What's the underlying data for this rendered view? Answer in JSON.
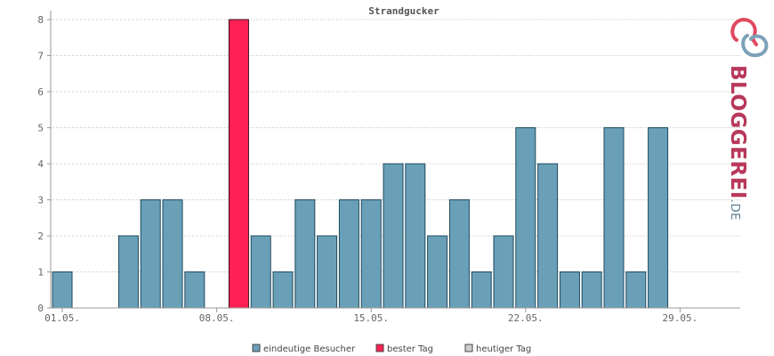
{
  "chart_data": {
    "type": "bar",
    "title": "Strandgucker",
    "categories": [
      "01.05.",
      "02.05.",
      "03.05.",
      "04.05.",
      "05.05.",
      "06.05.",
      "07.05.",
      "08.05.",
      "09.05.",
      "10.05.",
      "11.05.",
      "12.05.",
      "13.05.",
      "14.05.",
      "15.05.",
      "16.05.",
      "17.05.",
      "18.05.",
      "19.05.",
      "20.05.",
      "21.05.",
      "22.05.",
      "23.05.",
      "24.05.",
      "25.05.",
      "26.05.",
      "27.05.",
      "28.05.",
      "29.05.",
      "30.05.",
      "31.05."
    ],
    "x_tick_labels": [
      "01.05.",
      "08.05.",
      "15.05.",
      "22.05.",
      "29.05."
    ],
    "series": [
      {
        "name": "eindeutige Besucher",
        "values": [
          1,
          0,
          0,
          2,
          3,
          3,
          1,
          0,
          8,
          2,
          1,
          3,
          2,
          3,
          3,
          4,
          4,
          2,
          3,
          1,
          2,
          5,
          4,
          1,
          1,
          5,
          1,
          5,
          0,
          0,
          0
        ]
      }
    ],
    "best_day_index": 8,
    "ylim": [
      0,
      8
    ],
    "y_ticks": [
      0,
      1,
      2,
      3,
      4,
      5,
      6,
      7,
      8
    ],
    "grid": true,
    "colors": {
      "visitors": "#6a9fb8",
      "best": "#ff2156",
      "today": "#cccccc",
      "bar_border": "#1e4a5c"
    },
    "legend": [
      {
        "label": "eindeutige Besucher",
        "color": "#6a9fb8"
      },
      {
        "label": "bester Tag",
        "color": "#ff2156"
      },
      {
        "label": "heutiger Tag",
        "color": "#cccccc"
      }
    ],
    "legend_position": "bottom"
  },
  "brand": {
    "text": "BLOGGEREI",
    "suffix": ".DE",
    "icon": "bloggerei-logo-icon",
    "colors": {
      "main": "#b8385a",
      "suffix": "#5b7f95",
      "ring_a": "#e0485f",
      "ring_b": "#7da1b8"
    }
  }
}
